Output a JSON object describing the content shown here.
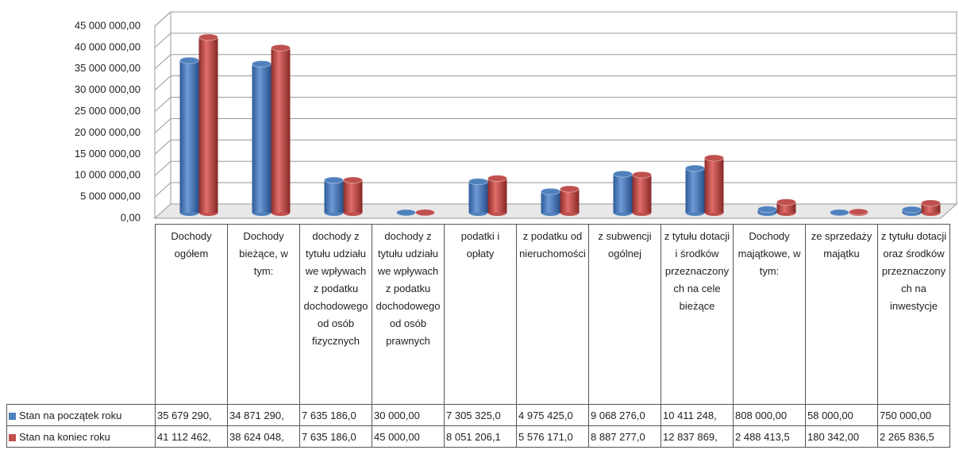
{
  "chart_data": {
    "type": "bar",
    "categories": [
      "Dochody ogółem",
      "Dochody bieżące, w tym:",
      "dochody z tytułu udziału we wpływach z podatku dochodowego od osób fizycznych",
      "dochody z tytułu udziału we wpływach z podatku dochodowego od osób prawnych",
      "podatki i opłaty",
      "z podatku od nieruchomości",
      "z subwencji ogólnej",
      "z tytułu dotacji i środków przeznaczonych na cele bieżące",
      "Dochody majątkowe, w tym:",
      "ze sprzedaży majątku",
      "z tytułu dotacji oraz środków przeznaczonych na inwestycje"
    ],
    "series": [
      {
        "name": "Stan na początek roku",
        "color": "#4f81bd",
        "values": [
          35679290,
          34871290,
          7635186.0,
          30000,
          7305325.0,
          4975425.0,
          9068276.0,
          10411248,
          808000,
          58000,
          750000
        ],
        "value_labels": [
          "35 679 290,",
          "34 871 290,",
          "7 635 186,0",
          "30 000,00",
          "7 305 325,0",
          "4 975 425,0",
          "9 068 276,0",
          "10 411 248,",
          "808 000,00",
          "58 000,00",
          "750 000,00"
        ]
      },
      {
        "name": "Stan na koniec roku",
        "color": "#c0504d",
        "values": [
          41112462,
          38624048,
          7635186.0,
          45000,
          8051206.1,
          5576171.0,
          8887277.0,
          12837869,
          2488413.5,
          180342,
          2265836.5
        ],
        "value_labels": [
          "41 112 462,",
          "38 624 048,",
          "7 635 186,0",
          "45 000,00",
          "8 051 206,1",
          "5 576 171,0",
          "8 887 277,0",
          "12 837 869,",
          "2 488 413,5",
          "180 342,00",
          "2 265 836,5"
        ]
      }
    ],
    "ylim": [
      0,
      45000000
    ],
    "yticks": [
      {
        "value": 0,
        "label": "0,00"
      },
      {
        "value": 5000000,
        "label": "5 000 000,00"
      },
      {
        "value": 10000000,
        "label": "10 000 000,00"
      },
      {
        "value": 15000000,
        "label": "15 000 000,00"
      },
      {
        "value": 20000000,
        "label": "20 000 000,00"
      },
      {
        "value": 25000000,
        "label": "25 000 000,00"
      },
      {
        "value": 30000000,
        "label": "30 000 000,00"
      },
      {
        "value": 35000000,
        "label": "35 000 000,00"
      },
      {
        "value": 40000000,
        "label": "40 000 000,00"
      },
      {
        "value": 45000000,
        "label": "45 000 000,00"
      }
    ],
    "grid": true
  }
}
